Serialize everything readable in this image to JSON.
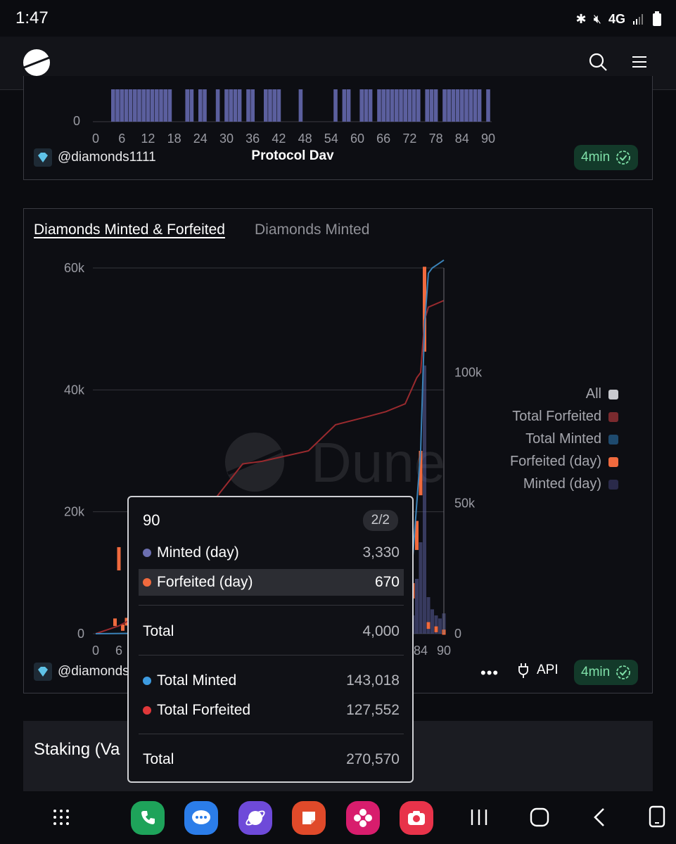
{
  "status": {
    "time": "1:47",
    "network": "4G"
  },
  "top_chart": {
    "y_zero": "0",
    "x_ticks": [
      "0",
      "6",
      "12",
      "18",
      "24",
      "30",
      "36",
      "42",
      "48",
      "54",
      "60",
      "66",
      "72",
      "78",
      "84",
      "90"
    ],
    "xlabel": "Protocol Day",
    "author": "@diamonds1111",
    "badge": "4min"
  },
  "main_chart": {
    "tabs": [
      "Diamonds Minted & Forfeited",
      "Diamonds Minted"
    ],
    "author": "@diamonds",
    "badge": "4min",
    "api_label": "API",
    "more_label": "•••",
    "watermark": "Dune",
    "left_ticks": [
      "0",
      "20k",
      "40k",
      "60k"
    ],
    "right_ticks": [
      "0",
      "50k",
      "100k"
    ],
    "x_ticks_visible": [
      "0",
      "6",
      "84",
      "90"
    ],
    "legend": [
      {
        "label": "All",
        "color": "#c9cacf"
      },
      {
        "label": "Total Forfeited",
        "color": "#7a2a2e"
      },
      {
        "label": "Total Minted",
        "color": "#1e4a6e"
      },
      {
        "label": "Forfeited (day)",
        "color": "#f06a3e"
      },
      {
        "label": "Minted (day)",
        "color": "#2a2a4a"
      }
    ],
    "colors": {
      "minted_day": "#5b5f9e",
      "forfeited_day": "#f06a3e",
      "total_minted": "#3a82b8",
      "total_forfeited": "#9a2a2e"
    }
  },
  "tooltip": {
    "title": "90",
    "page": "2/2",
    "rows": [
      {
        "label": "Minted (day)",
        "value": "3,330",
        "color": "#6c6fb0"
      },
      {
        "label": "Forfeited (day)",
        "value": "670",
        "color": "#f06a3e"
      }
    ],
    "total1_label": "Total",
    "total1_value": "4,000",
    "rows2": [
      {
        "label": "Total Minted",
        "value": "143,018",
        "color": "#3d9be0"
      },
      {
        "label": "Total Forfeited",
        "value": "127,552",
        "color": "#e0383a"
      }
    ],
    "total2_label": "Total",
    "total2_value": "270,570"
  },
  "next_card": {
    "title": "Staking (Va"
  },
  "chart_data": [
    {
      "type": "bar",
      "xlabel": "Protocol Day",
      "ylabel": "",
      "title": "",
      "x_ticks": [
        0,
        6,
        12,
        18,
        24,
        30,
        36,
        42,
        48,
        54,
        60,
        66,
        72,
        78,
        84,
        90
      ],
      "bar_days": [
        4,
        5,
        6,
        7,
        8,
        9,
        10,
        11,
        12,
        13,
        14,
        15,
        16,
        17,
        21,
        22,
        24,
        25,
        28,
        30,
        31,
        32,
        33,
        35,
        36,
        39,
        40,
        41,
        42,
        47,
        55,
        57,
        58,
        61,
        62,
        63,
        65,
        66,
        67,
        68,
        69,
        70,
        71,
        72,
        73,
        74,
        76,
        77,
        78,
        80,
        81,
        82,
        83,
        84,
        85,
        86,
        87,
        88,
        90
      ]
    },
    {
      "type": "bar",
      "title": "Diamonds Minted & Forfeited",
      "xlim": [
        0,
        90
      ],
      "ylim_left": [
        0,
        60000
      ],
      "ylim_right": [
        0,
        140000
      ],
      "series": [
        {
          "name": "Forfeited (day)",
          "x": [
            5,
            6,
            7,
            8,
            80,
            81,
            82,
            83,
            84,
            85,
            86,
            88,
            90
          ],
          "values": [
            2500,
            14200,
            1500,
            2600,
            6000,
            2000,
            8300,
            18500,
            30000,
            60200,
            1900,
            1200,
            670
          ]
        },
        {
          "name": "Minted (day)",
          "x": [
            80,
            81,
            82,
            83,
            84,
            85,
            86,
            87,
            88,
            89,
            90
          ],
          "values": [
            2000,
            4000,
            3000,
            9000,
            15000,
            44000,
            6000,
            4000,
            3000,
            2500,
            3330
          ]
        },
        {
          "name": "Total Minted",
          "x": [
            0,
            70,
            78,
            80,
            82,
            84,
            85,
            86,
            87,
            88,
            89,
            90
          ],
          "values": [
            0,
            1000,
            3000,
            8000,
            30000,
            70000,
            118000,
            138000,
            140000,
            141000,
            142000,
            143018
          ]
        },
        {
          "name": "Total Forfeited",
          "x": [
            0,
            6,
            20,
            30,
            38,
            43,
            55,
            62,
            70,
            75,
            80,
            83,
            84,
            85,
            86,
            90
          ],
          "values": [
            0,
            3000,
            14000,
            50000,
            65000,
            66000,
            70000,
            80000,
            83000,
            85000,
            88000,
            98000,
            100000,
            120000,
            125000,
            127552
          ]
        }
      ]
    }
  ]
}
